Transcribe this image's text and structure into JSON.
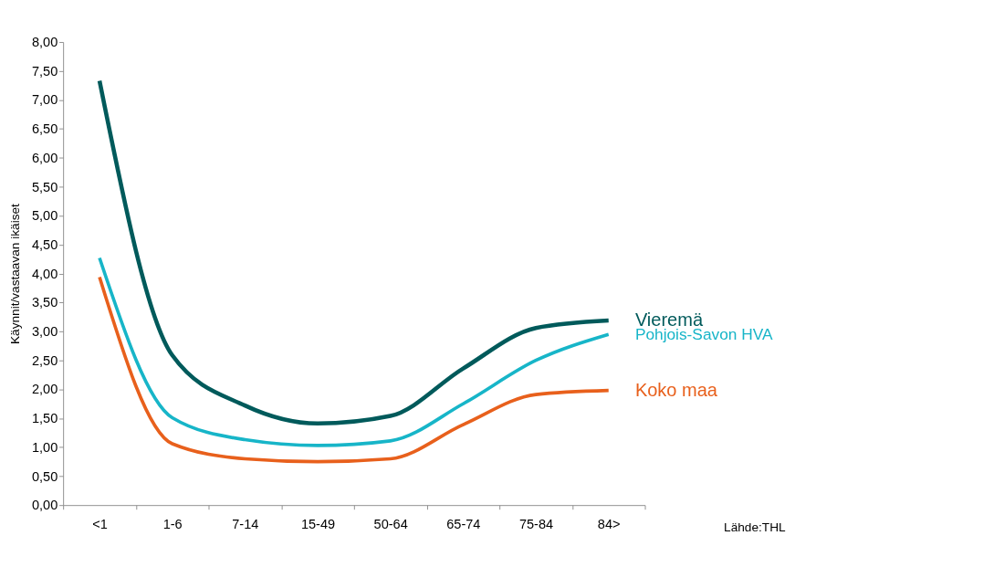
{
  "chart_data": {
    "type": "line",
    "ylabel": "Käynnit/vastaavan ikäiset",
    "categories": [
      "<1",
      "1-6",
      "7-14",
      "15-49",
      "50-64",
      "65-74",
      "75-84",
      "84>"
    ],
    "series": [
      {
        "name": "Vieremä",
        "color": "#005a5b",
        "values": [
          7.33,
          2.59,
          1.72,
          1.41,
          1.54,
          2.36,
          3.06,
          3.19
        ]
      },
      {
        "name": "Pohjois-Savon HVA",
        "color": "#17b5c8",
        "values": [
          4.27,
          1.51,
          1.13,
          1.03,
          1.11,
          1.75,
          2.5,
          2.95
        ]
      },
      {
        "name": "Koko maa",
        "color": "#e8601c",
        "values": [
          3.94,
          1.06,
          0.8,
          0.75,
          0.8,
          1.39,
          1.91,
          1.98
        ]
      }
    ],
    "ylim": [
      0,
      8
    ],
    "yticks": [
      {
        "value": 0,
        "label": "0,00"
      },
      {
        "value": 0.5,
        "label": "0,50"
      },
      {
        "value": 1,
        "label": "1,00"
      },
      {
        "value": 1.5,
        "label": "1,50"
      },
      {
        "value": 2,
        "label": "2,00"
      },
      {
        "value": 2.5,
        "label": "2,50"
      },
      {
        "value": 3,
        "label": "3,00"
      },
      {
        "value": 3.5,
        "label": "3,50"
      },
      {
        "value": 4,
        "label": "4,00"
      },
      {
        "value": 4.5,
        "label": "4,50"
      },
      {
        "value": 5,
        "label": "5,00"
      },
      {
        "value": 5.5,
        "label": "5,50"
      },
      {
        "value": 6,
        "label": "6,00"
      },
      {
        "value": 6.5,
        "label": "6,50"
      },
      {
        "value": 7,
        "label": "7,00"
      },
      {
        "value": 7.5,
        "label": "7,50"
      },
      {
        "value": 8,
        "label": "8,00"
      }
    ],
    "grid": false,
    "legend": false,
    "marker": "none",
    "line_style": "solid",
    "annotations": [
      "Lähde:THL"
    ]
  }
}
